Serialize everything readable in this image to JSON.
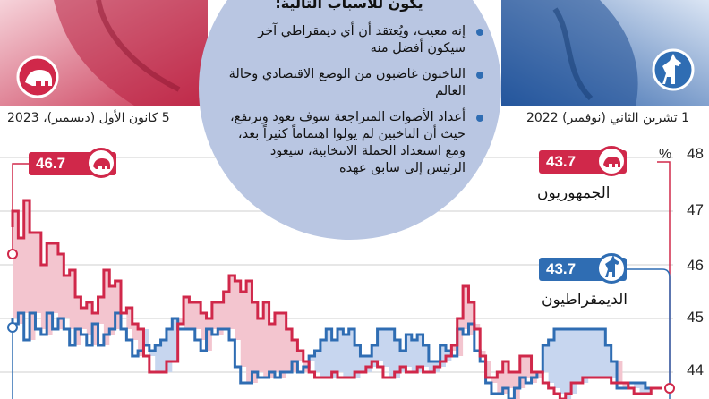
{
  "header": {
    "bubble_title": "يكون للأسباب التالية:",
    "bullets": [
      "إنه معيب، ويُعتقد أن أي ديمقراطي آخر سيكون أفضل منه",
      "الناخبون غاضبون من الوضع الاقتصادي وحالة العالم",
      "أعداد الأصوات المتراجعة سوف تعود وترتفع، حيث أن الناخبين لم يولوا اهتماماً كثيراً بعد، ومع استعداد الحملة الانتخابية، سيعود الرئيس إلى سابق عهده"
    ],
    "date_start": "1 تشرين الثاني (نوفمبر) 2022",
    "date_end": "5 كانون الأول (ديسمبر)، 2023"
  },
  "colors": {
    "republican": "#d0284a",
    "democrat": "#2f6db3",
    "rep_fill": "#f3c5cf",
    "dem_fill": "#c7d6ef",
    "bubble": "#b9c6e2"
  },
  "icons": {
    "republican": "elephant-icon",
    "democrat": "donkey-icon"
  },
  "chart_data": {
    "type": "line",
    "x_direction": "right-to-left",
    "x_start": "2022-11-01",
    "x_end": "2023-12-05",
    "ylim": [
      43.5,
      48
    ],
    "y_unit": "%",
    "y_ticks": [
      48,
      47,
      46,
      45,
      44
    ],
    "series": [
      {
        "name": "الجمهوريون",
        "start_value": 43.7,
        "end_value": 46.7,
        "values": [
          43.7,
          43.7,
          43.6,
          43.6,
          43.6,
          43.7,
          43.8,
          43.8,
          43.8,
          43.9,
          43.9,
          43.9,
          43.9,
          43.9,
          43.8,
          43.8,
          43.6,
          43.5,
          43.6,
          43.7,
          43.8,
          44.0,
          44.0,
          44.3,
          44.3,
          44.0,
          44.0,
          44.2,
          44.0,
          43.9,
          43.9,
          44.3,
          44.8,
          45.3,
          45.6,
          45.0,
          44.5,
          44.3,
          44.2,
          44.1,
          44.0,
          44.0,
          44.1,
          44.0,
          44.0,
          44.1,
          44.0,
          43.9,
          43.9,
          44.1,
          44.2,
          44.1,
          44.0,
          44.0,
          43.9,
          43.9,
          43.9,
          44.0,
          43.9,
          43.9,
          43.9,
          44.0,
          44.2,
          44.4,
          44.6,
          44.8,
          45.1,
          45.1,
          44.9,
          45.3,
          45.0,
          45.3,
          45.7,
          45.5,
          45.7,
          45.8,
          45.5,
          45.3,
          45.3,
          45.0,
          45.1,
          45.3,
          45.3,
          45.4,
          44.9,
          44.2,
          44.2,
          44.0,
          44.0,
          44.0,
          44.3,
          44.8,
          44.9,
          45.2,
          45.1,
          45.7,
          45.6,
          45.9,
          45.4,
          45.1,
          45.3,
          45.2,
          45.4,
          45.9,
          45.8,
          46.2,
          46.4,
          46.4,
          46.0,
          46.6,
          46.6,
          47.2,
          46.5,
          47.0,
          46.7
        ]
      },
      {
        "name": "الديمقراطيون",
        "start_value": 43.7,
        "end_value": 45.0,
        "values": [
          43.7,
          43.7,
          43.7,
          43.8,
          43.8,
          43.8,
          43.7,
          43.7,
          44.2,
          44.5,
          44.8,
          44.8,
          44.8,
          44.8,
          44.8,
          44.8,
          44.8,
          44.8,
          44.8,
          44.6,
          44.5,
          44.0,
          43.9,
          43.8,
          43.9,
          43.7,
          43.5,
          43.7,
          43.6,
          43.6,
          43.8,
          44.2,
          44.4,
          44.9,
          44.7,
          44.8,
          44.3,
          44.4,
          44.5,
          44.2,
          44.2,
          44.5,
          44.7,
          44.6,
          44.7,
          44.4,
          44.6,
          44.8,
          44.8,
          44.8,
          44.5,
          44.3,
          44.3,
          44.5,
          44.8,
          44.7,
          44.8,
          44.6,
          44.8,
          44.6,
          44.4,
          44.3,
          44.1,
          44.0,
          44.2,
          44.0,
          44.0,
          43.9,
          44.0,
          43.9,
          43.9,
          44.0,
          43.8,
          43.8,
          44.1,
          44.6,
          44.8,
          44.8,
          44.7,
          44.8,
          44.4,
          44.6,
          44.8,
          44.8,
          44.8,
          45.0,
          44.8,
          44.6,
          44.5,
          44.4,
          44.5,
          44.4,
          44.3,
          44.6,
          44.8,
          45.1,
          44.8,
          44.7,
          44.5,
          44.9,
          44.5,
          44.7,
          44.8,
          44.5,
          44.8,
          45.0,
          44.8,
          45.1,
          44.7,
          44.8,
          45.1,
          44.6,
          45.1,
          44.9,
          45.0
        ]
      }
    ]
  }
}
